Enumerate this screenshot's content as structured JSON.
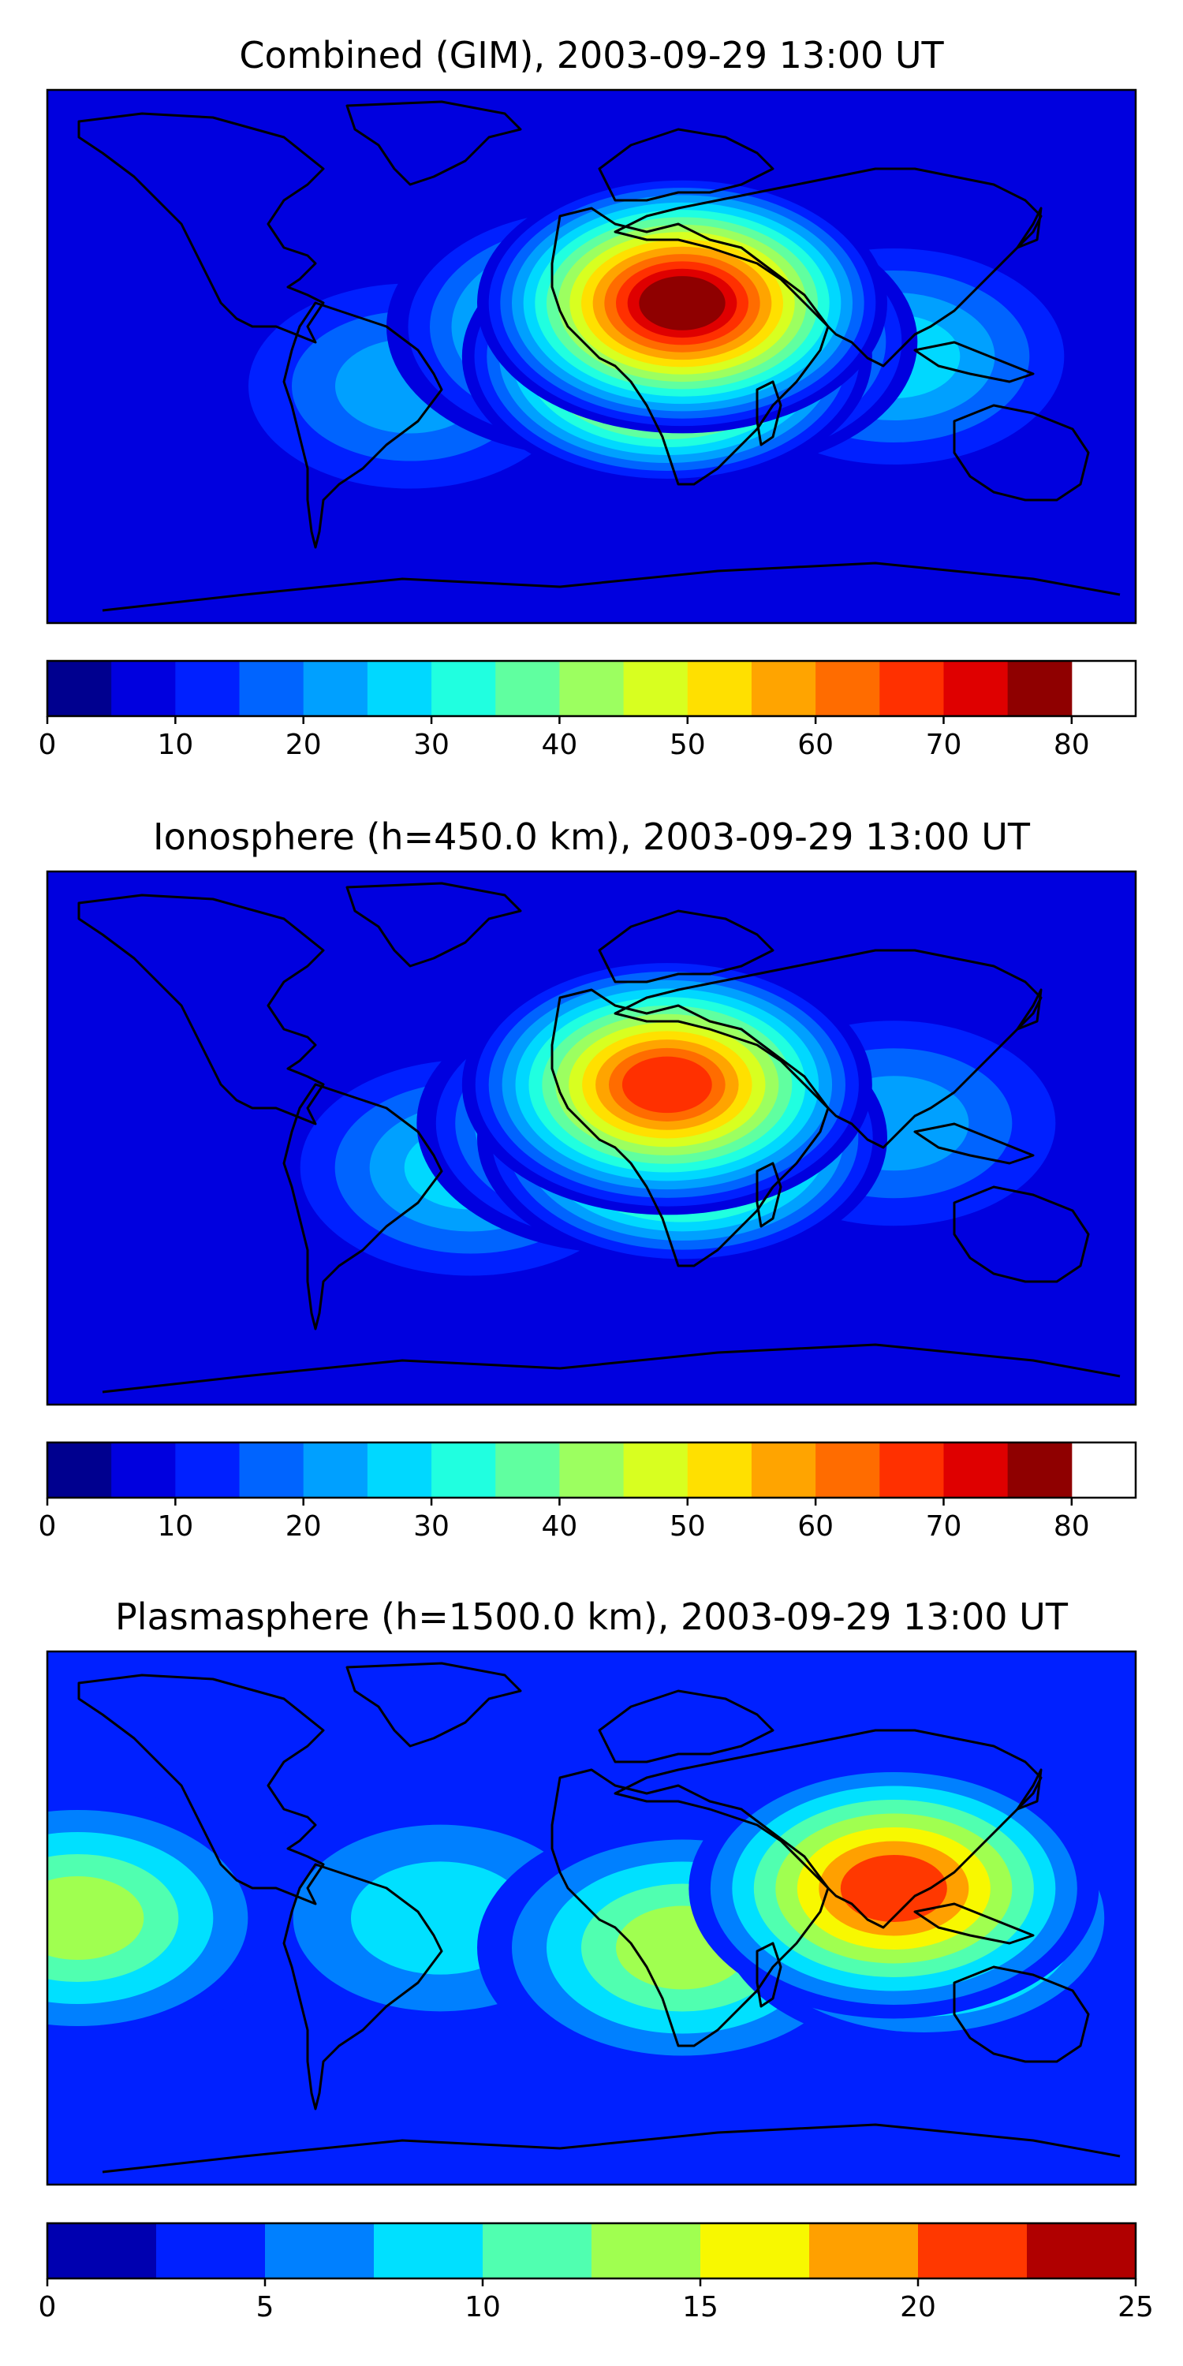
{
  "chart_data": [
    {
      "type": "heatmap",
      "title": "Combined (GIM), 2003-09-29 13:00 UT",
      "colorbar": {
        "min": 0,
        "max": 85,
        "step": 5,
        "tick_values": [
          0,
          10,
          20,
          30,
          40,
          50,
          60,
          70,
          80
        ],
        "tick_labels": [
          "0",
          "10",
          "20",
          "30",
          "40",
          "50",
          "60",
          "70",
          "80"
        ],
        "colors": [
          "#00008f",
          "#0000df",
          "#0020ff",
          "#0064ff",
          "#00a0ff",
          "#00d8ff",
          "#20ffe0",
          "#60ffa0",
          "#9cff60",
          "#d8ff20",
          "#ffe000",
          "#ffa400",
          "#ff6c00",
          "#ff3000",
          "#df0000",
          "#8f0000"
        ]
      },
      "hotspots": [
        {
          "lon": 30,
          "lat": 18,
          "value": 80
        },
        {
          "lon": 25,
          "lat": 0,
          "value": 74
        },
        {
          "lon": 40,
          "lat": 5,
          "value": 62
        },
        {
          "lon": 0,
          "lat": 10,
          "value": 45
        },
        {
          "lon": 100,
          "lat": 0,
          "value": 30
        },
        {
          "lon": -60,
          "lat": -10,
          "value": 24
        },
        {
          "lon": -130,
          "lat": 30,
          "value": 8
        }
      ]
    },
    {
      "type": "heatmap",
      "title": "Ionosphere  (h=450.0 km), 2003-09-29 13:00 UT",
      "colorbar": {
        "min": 0,
        "max": 85,
        "step": 5,
        "tick_values": [
          0,
          10,
          20,
          30,
          40,
          50,
          60,
          70,
          80
        ],
        "tick_labels": [
          "0",
          "10",
          "20",
          "30",
          "40",
          "50",
          "60",
          "70",
          "80"
        ],
        "colors": [
          "#00008f",
          "#0000df",
          "#0020ff",
          "#0064ff",
          "#00a0ff",
          "#00d8ff",
          "#20ffe0",
          "#60ffa0",
          "#9cff60",
          "#d8ff20",
          "#ffe000",
          "#ffa400",
          "#ff6c00",
          "#ff3000",
          "#df0000",
          "#8f0000"
        ]
      },
      "hotspots": [
        {
          "lon": 25,
          "lat": 18,
          "value": 68
        },
        {
          "lon": 30,
          "lat": 0,
          "value": 62
        },
        {
          "lon": 10,
          "lat": 5,
          "value": 48
        },
        {
          "lon": -40,
          "lat": -10,
          "value": 30
        },
        {
          "lon": 100,
          "lat": 5,
          "value": 22
        },
        {
          "lon": -150,
          "lat": 10,
          "value": 6
        }
      ]
    },
    {
      "type": "heatmap",
      "title": "Plasmasphere (h=1500.0 km), 2003-09-29 13:00 UT",
      "colorbar": {
        "min": 0,
        "max": 25,
        "step": 2.5,
        "tick_values": [
          0,
          5,
          10,
          15,
          20,
          25
        ],
        "tick_labels": [
          "0",
          "5",
          "10",
          "15",
          "20",
          "25"
        ],
        "colors": [
          "#0000b0",
          "#0020ff",
          "#0080ff",
          "#00e0ff",
          "#50ffb0",
          "#a0ff50",
          "#f8f800",
          "#ffa000",
          "#ff3800",
          "#b00000"
        ]
      },
      "hotspots": [
        {
          "lon": 100,
          "lat": 10,
          "value": 22
        },
        {
          "lon": 110,
          "lat": 0,
          "value": 18
        },
        {
          "lon": 30,
          "lat": -10,
          "value": 15
        },
        {
          "lon": -170,
          "lat": 0,
          "value": 13
        },
        {
          "lon": -50,
          "lat": 0,
          "value": 10
        },
        {
          "lon": 0,
          "lat": 60,
          "value": 3
        }
      ]
    }
  ]
}
